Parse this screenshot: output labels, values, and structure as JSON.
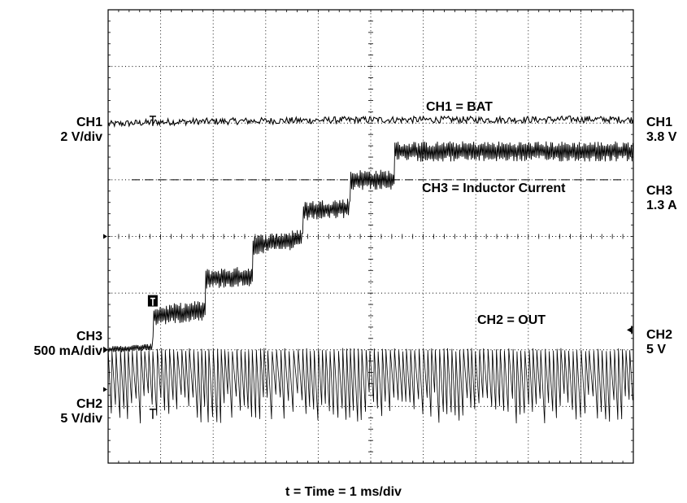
{
  "chart_data": {
    "type": "line",
    "xlabel": "t = Time = 1 ms/div",
    "grid": true,
    "divisions": {
      "x": 10,
      "y": 8
    },
    "series": [
      {
        "name": "CH1 = BAT",
        "channel": "CH1",
        "scale_label": "2 V/div",
        "level_label": "3.8 V",
        "points": [
          [
            0.0,
            5.98
          ],
          [
            1.0,
            6.02
          ],
          [
            2.0,
            6.03
          ],
          [
            3.0,
            6.04
          ],
          [
            4.0,
            6.05
          ],
          [
            5.0,
            6.06
          ],
          [
            6.0,
            6.06
          ],
          [
            7.0,
            6.06
          ],
          [
            8.0,
            6.06
          ],
          [
            9.0,
            6.07
          ],
          [
            10.0,
            6.06
          ]
        ]
      },
      {
        "name": "CH3 = Inductor Current",
        "channel": "CH3",
        "scale_label": "500 mA/div",
        "level_label": "1.3 A",
        "points": [
          [
            0.0,
            2.0
          ],
          [
            0.85,
            2.05
          ],
          [
            0.86,
            2.6
          ],
          [
            1.85,
            2.7
          ],
          [
            1.86,
            3.25
          ],
          [
            2.75,
            3.3
          ],
          [
            2.76,
            3.85
          ],
          [
            3.7,
            3.95
          ],
          [
            3.71,
            4.45
          ],
          [
            4.6,
            4.5
          ],
          [
            4.61,
            5.0
          ],
          [
            5.45,
            5.0
          ],
          [
            5.46,
            5.5
          ],
          [
            10.0,
            5.5
          ]
        ]
      },
      {
        "name": "CH2 = OUT",
        "channel": "CH2",
        "scale_label": "5 V/div",
        "level_label": "5 V",
        "points": [
          [
            0.0,
            2.0
          ],
          [
            10.0,
            2.0
          ]
        ],
        "ripple_min": 0.7
      }
    ],
    "reference_line": {
      "style": "dashed",
      "y": 5.0
    }
  },
  "labels": {
    "ch1_left_name": "CH1",
    "ch1_left_scale": "2 V/div",
    "ch1_right_name": "CH1",
    "ch1_right_level": "3.8 V",
    "ch3_left_name": "CH3",
    "ch3_left_scale": "500 mA/div",
    "ch3_right_name": "CH3",
    "ch3_right_level": "1.3 A",
    "ch2_left_name": "CH2",
    "ch2_left_scale": "5 V/div",
    "ch2_right_name": "CH2",
    "ch2_right_level": "5 V",
    "ch1_trace_name": "CH1 = BAT",
    "ch3_trace_name": "CH3 = Inductor Current",
    "ch2_trace_name": "CH2 = OUT",
    "x_axis": "t = Time = 1 ms/div"
  }
}
